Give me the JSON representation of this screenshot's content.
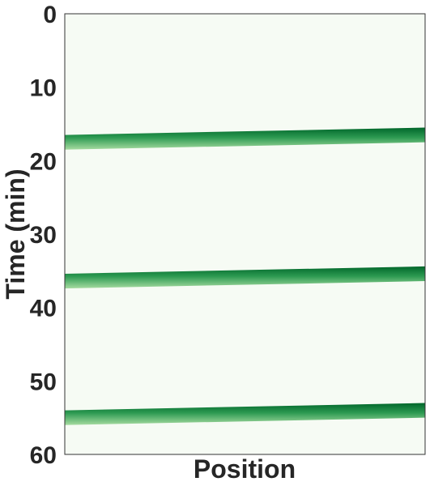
{
  "chart_data": {
    "type": "heatmap",
    "title": "",
    "xlabel": "Position",
    "ylabel": "Time (min)",
    "ylim": [
      0,
      60
    ],
    "y_inverted": true,
    "yticks": [
      "0",
      "10",
      "20",
      "30",
      "40",
      "50",
      "60"
    ],
    "xticks": [],
    "grid": false,
    "colormap": "Greens",
    "colors": {
      "background": "#f6fbf4",
      "band_dark": "#00662a",
      "band_mid": "#2d9a52",
      "band_light": "#a6dba0"
    },
    "bands": [
      {
        "time_start": 16.5,
        "time_end": 15.5,
        "width": 2.0
      },
      {
        "time_start": 35.4,
        "time_end": 34.4,
        "width": 2.0
      },
      {
        "time_start": 54.0,
        "time_end": 53.0,
        "width": 2.0
      }
    ]
  }
}
